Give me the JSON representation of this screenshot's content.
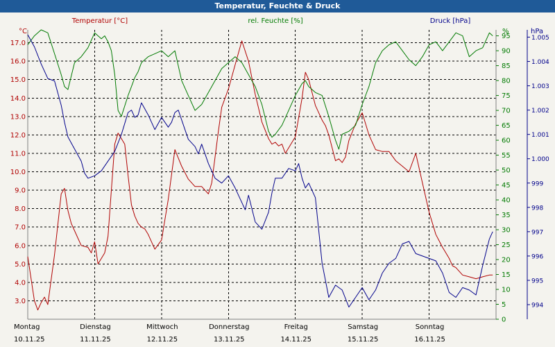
{
  "chart_data": {
    "type": "line",
    "title": "Temperatur, Feuchte & Druck",
    "legend": {
      "temperature": "Temperatur [°C]",
      "humidity": "rel. Feuchte [%]",
      "pressure": "Druck [hPa]"
    },
    "axis_units": {
      "left": "°C",
      "right_humidity": "%",
      "right_pressure": "hPa"
    },
    "x_range_days": [
      0,
      7
    ],
    "temperature_axis": {
      "ylim": [
        2.0,
        17.7
      ],
      "ticks": [
        "3.0",
        "4.0",
        "5.0",
        "6.0",
        "7.0",
        "8.0",
        "9.0",
        "10.0",
        "11.0",
        "12.0",
        "13.0",
        "14.0",
        "15.0",
        "16.0",
        "17.0"
      ]
    },
    "humidity_axis": {
      "ylim": [
        0,
        97
      ],
      "ticks": [
        "0",
        "5",
        "10",
        "15",
        "20",
        "25",
        "30",
        "35",
        "40",
        "45",
        "50",
        "55",
        "60",
        "65",
        "70",
        "75",
        "80",
        "85",
        "90",
        "95"
      ]
    },
    "pressure_axis": {
      "ylim": [
        993.4,
        1005.3
      ],
      "ticks": [
        "994",
        "995",
        "996",
        "997",
        "998",
        "999",
        "1.000",
        "1.001",
        "1.002",
        "1.003",
        "1.004",
        "1.005"
      ]
    },
    "x_labels": [
      {
        "day": "Montag",
        "date": "10.11.25"
      },
      {
        "day": "Dienstag",
        "date": "11.11.25"
      },
      {
        "day": "Mittwoch",
        "date": "12.11.25"
      },
      {
        "day": "Donnerstag",
        "date": "13.11.25"
      },
      {
        "day": "Freitag",
        "date": "14.11.25"
      },
      {
        "day": "Samstag",
        "date": "15.11.25"
      },
      {
        "day": "Sonntag",
        "date": "16.11.25"
      }
    ],
    "colors": {
      "temperature": "#b00000",
      "humidity": "#007a00",
      "pressure": "#00008b",
      "grid": "#000000"
    },
    "series": [
      {
        "name": "Temperatur",
        "unit": "°C",
        "x": [
          0.0,
          0.05,
          0.1,
          0.15,
          0.2,
          0.25,
          0.3,
          0.4,
          0.5,
          0.55,
          0.6,
          0.65,
          0.7,
          0.8,
          0.9,
          0.95,
          1.0,
          1.05,
          1.1,
          1.15,
          1.2,
          1.25,
          1.3,
          1.35,
          1.45,
          1.5,
          1.55,
          1.6,
          1.65,
          1.7,
          1.75,
          1.8,
          1.9,
          2.0,
          2.1,
          2.2,
          2.3,
          2.4,
          2.5,
          2.6,
          2.65,
          2.7,
          2.75,
          2.8,
          2.85,
          2.9,
          3.0,
          3.1,
          3.2,
          3.3,
          3.4,
          3.5,
          3.6,
          3.65,
          3.7,
          3.75,
          3.8,
          3.85,
          3.9,
          4.0,
          4.1,
          4.15,
          4.2,
          4.3,
          4.4,
          4.45,
          4.5,
          4.6,
          4.65,
          4.7,
          4.75,
          4.8,
          4.9,
          5.0,
          5.05,
          5.1,
          5.2,
          5.3,
          5.4,
          5.5,
          5.6,
          5.7,
          5.8,
          5.9,
          6.0,
          6.1,
          6.2,
          6.3,
          6.35,
          6.4,
          6.5,
          6.6,
          6.7,
          6.8,
          6.9,
          6.95
        ],
        "values": [
          5.4,
          4.2,
          3.0,
          2.5,
          2.9,
          3.2,
          2.8,
          5.5,
          8.8,
          9.1,
          7.9,
          7.2,
          6.8,
          6.0,
          5.9,
          5.6,
          6.2,
          5.0,
          5.3,
          5.6,
          6.5,
          9.0,
          11.5,
          12.1,
          11.5,
          9.8,
          8.2,
          7.6,
          7.2,
          7.0,
          6.9,
          6.6,
          5.8,
          6.3,
          8.5,
          11.2,
          10.3,
          9.6,
          9.2,
          9.2,
          9.0,
          8.8,
          9.4,
          10.8,
          12.2,
          13.5,
          14.5,
          15.8,
          17.1,
          16.0,
          14.2,
          12.7,
          11.8,
          11.5,
          11.6,
          11.4,
          11.5,
          11.0,
          11.3,
          11.9,
          14.0,
          15.4,
          15.0,
          13.6,
          12.8,
          12.5,
          12.0,
          10.6,
          10.7,
          10.5,
          10.8,
          11.7,
          12.6,
          13.2,
          12.6,
          12.0,
          11.2,
          11.1,
          11.1,
          10.6,
          10.3,
          10.0,
          11.0,
          9.4,
          7.8,
          6.6,
          5.9,
          5.3,
          4.9,
          4.8,
          4.4,
          4.3,
          4.2,
          4.3,
          4.4,
          4.4
        ]
      },
      {
        "name": "rel. Feuchte",
        "unit": "%",
        "x": [
          0.0,
          0.1,
          0.2,
          0.3,
          0.4,
          0.5,
          0.55,
          0.6,
          0.7,
          0.8,
          0.9,
          1.0,
          1.05,
          1.1,
          1.15,
          1.2,
          1.25,
          1.3,
          1.35,
          1.4,
          1.5,
          1.55,
          1.6,
          1.65,
          1.7,
          1.8,
          1.9,
          2.0,
          2.1,
          2.2,
          2.3,
          2.4,
          2.5,
          2.6,
          2.7,
          2.8,
          2.9,
          3.0,
          3.1,
          3.2,
          3.3,
          3.4,
          3.5,
          3.6,
          3.65,
          3.7,
          3.8,
          3.9,
          4.0,
          4.1,
          4.15,
          4.2,
          4.3,
          4.4,
          4.5,
          4.6,
          4.65,
          4.7,
          4.8,
          4.9,
          5.0,
          5.1,
          5.2,
          5.3,
          5.4,
          5.5,
          5.6,
          5.7,
          5.8,
          5.9,
          6.0,
          6.1,
          6.2,
          6.3,
          6.4,
          6.5,
          6.6,
          6.7,
          6.8,
          6.9,
          6.95
        ],
        "values": [
          92,
          95,
          97,
          96,
          89,
          82,
          78,
          77,
          86,
          88,
          91,
          96,
          95,
          94,
          95,
          93,
          90,
          82,
          70,
          68,
          75,
          78,
          81,
          83,
          86,
          88,
          89,
          90,
          88,
          90,
          80,
          75,
          70,
          72,
          76,
          80,
          84,
          86,
          88,
          86,
          82,
          78,
          72,
          63,
          61,
          62,
          65,
          70,
          75,
          79,
          80,
          78,
          76,
          75,
          68,
          60,
          57,
          62,
          63,
          65,
          72,
          78,
          86,
          90,
          92,
          93,
          90,
          87,
          85,
          88,
          92,
          93,
          90,
          93,
          96,
          95,
          88,
          90,
          91,
          96,
          95
        ]
      },
      {
        "name": "Druck",
        "unit": "hPa",
        "x": [
          0.0,
          0.1,
          0.2,
          0.3,
          0.4,
          0.5,
          0.55,
          0.6,
          0.7,
          0.8,
          0.85,
          0.9,
          1.0,
          1.1,
          1.2,
          1.3,
          1.4,
          1.5,
          1.55,
          1.6,
          1.65,
          1.7,
          1.8,
          1.9,
          2.0,
          2.05,
          2.1,
          2.15,
          2.2,
          2.25,
          2.3,
          2.35,
          2.4,
          2.5,
          2.55,
          2.6,
          2.7,
          2.8,
          2.9,
          3.0,
          3.1,
          3.2,
          3.25,
          3.3,
          3.4,
          3.5,
          3.6,
          3.65,
          3.7,
          3.8,
          3.9,
          4.0,
          4.05,
          4.1,
          4.15,
          4.2,
          4.3,
          4.4,
          4.5,
          4.6,
          4.7,
          4.8,
          4.9,
          5.0,
          5.1,
          5.2,
          5.3,
          5.4,
          5.5,
          5.6,
          5.7,
          5.8,
          5.9,
          6.0,
          6.1,
          6.2,
          6.3,
          6.4,
          6.5,
          6.6,
          6.7,
          6.8,
          6.9,
          6.95
        ],
        "values": [
          1005.1,
          1004.6,
          1003.9,
          1003.3,
          1003.2,
          1002.2,
          1001.5,
          1000.9,
          1000.4,
          999.9,
          999.4,
          999.2,
          999.3,
          999.5,
          999.9,
          1000.3,
          1001.0,
          1001.9,
          1002.0,
          1001.7,
          1001.8,
          1002.3,
          1001.8,
          1001.2,
          1001.7,
          1001.5,
          1001.3,
          1001.5,
          1001.9,
          1002.0,
          1001.6,
          1001.2,
          1000.8,
          1000.5,
          1000.2,
          1000.6,
          999.8,
          999.2,
          999.0,
          999.3,
          998.8,
          998.2,
          997.9,
          998.5,
          997.4,
          997.1,
          997.8,
          998.6,
          999.2,
          999.2,
          999.6,
          999.5,
          999.8,
          999.2,
          998.8,
          999.0,
          998.4,
          995.7,
          994.3,
          994.8,
          994.6,
          993.9,
          994.3,
          994.7,
          994.2,
          994.6,
          995.3,
          995.7,
          995.9,
          996.5,
          996.6,
          996.1,
          996.0,
          995.9,
          995.8,
          995.3,
          994.5,
          994.3,
          994.7,
          994.6,
          994.4,
          995.6,
          996.7,
          997.0
        ]
      }
    ]
  }
}
